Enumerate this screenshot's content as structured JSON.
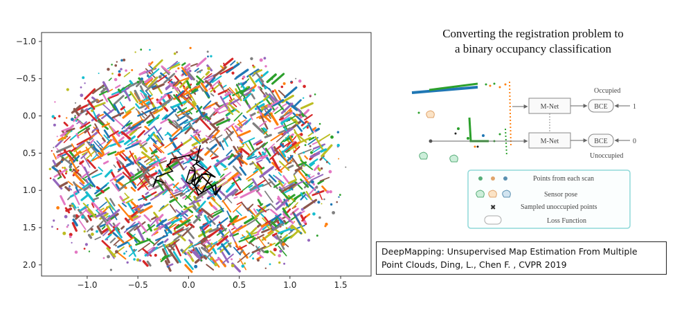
{
  "chart_data": {
    "type": "scatter",
    "title": "",
    "xlabel": "",
    "ylabel": "",
    "xlim": [
      -1.45,
      1.8
    ],
    "ylim": [
      2.15,
      -1.12
    ],
    "y_inverted": true,
    "x_ticks": [
      -1.0,
      -0.5,
      0.0,
      0.5,
      1.0,
      1.5
    ],
    "x_tick_labels": [
      "−1.0",
      "−0.5",
      "0.0",
      "0.5",
      "1.0",
      "1.5"
    ],
    "y_ticks": [
      -1.0,
      -0.5,
      0.0,
      0.5,
      1.0,
      1.5,
      2.0
    ],
    "y_tick_labels": [
      "−1.0",
      "−0.5",
      "0.0",
      "0.5",
      "1.0",
      "1.5",
      "2.0"
    ],
    "grid": false,
    "legend": "none",
    "series_colors": [
      "#1f77b4",
      "#ff7f0e",
      "#2ca02c",
      "#d62728",
      "#9467bd",
      "#8c564b",
      "#e377c2",
      "#7f7f7f",
      "#bcbd22",
      "#17becf"
    ],
    "trajectory_color": "#000000",
    "note": "point clouds from many scans (one color per scan) with a black sensor trajectory near (0, 0.7)"
  },
  "diagram": {
    "title_line1": "Converting the registration problem to",
    "title_line2": "a binary occupancy classification",
    "mnet_label": "M-Net",
    "bce_label": "BCE",
    "occupied_label": "Occupied",
    "unoccupied_label": "Unoccupied",
    "target_one": "1",
    "target_zero": "0",
    "legend": {
      "points": "Points from each scan",
      "pose": "Sensor pose",
      "sampled": "Sampled unoccupied points",
      "loss": "Loss Function"
    },
    "colors": {
      "accent_border": "#8fd8d8",
      "box_border": "#888888",
      "arrow": "#666666"
    }
  },
  "citation": {
    "line1": "DeepMapping: Unsupervised Map Estimation From Multiple",
    "line2": "Point Clouds, Ding, L., Chen F. , CVPR 2019"
  }
}
